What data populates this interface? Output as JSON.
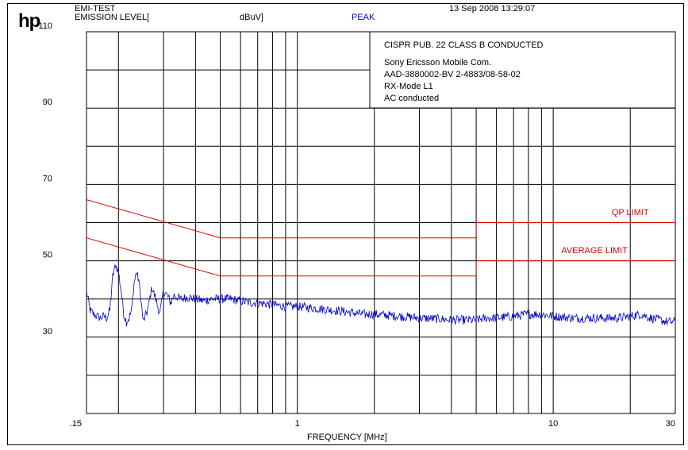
{
  "header": {
    "logo": "hp",
    "test_name": "EMI-TEST",
    "emission_level_label": "EMISSION LEVEL[",
    "unit_label": "dBuV]",
    "detector": "PEAK",
    "timestamp": "13 Sep 2008  13:29:07"
  },
  "info_box": {
    "standard": "CISPR PUB. 22 CLASS B CONDUCTED",
    "lines": [
      "Sony Ericsson Mobile Com.",
      "AAD-3880002-BV 2-4883/08-58-02",
      "RX-Mode L1",
      "AC conducted"
    ]
  },
  "colors": {
    "limit": "#e00000",
    "trace": "#0000cc",
    "grid": "#000000",
    "detector_text": "#0000cc"
  },
  "chart_data": {
    "type": "line",
    "xlabel": "FREQUENCY [MHz]",
    "ylabel": "",
    "x_scale": "log",
    "xlim": [
      0.15,
      30
    ],
    "ylim": [
      10,
      110
    ],
    "x_tick_labels": [
      {
        "value": 0.15,
        "label": ".15"
      },
      {
        "value": 1,
        "label": "1"
      },
      {
        "value": 10,
        "label": "10"
      },
      {
        "value": 30,
        "label": "30"
      }
    ],
    "y_tick_labels": [
      {
        "value": 110,
        "label": "110"
      },
      {
        "value": 90,
        "label": "90"
      },
      {
        "value": 70,
        "label": "70"
      },
      {
        "value": 50,
        "label": "50"
      },
      {
        "value": 30,
        "label": "30"
      }
    ],
    "grid": true,
    "series": [
      {
        "name": "QP LIMIT",
        "x": [
          0.15,
          0.5,
          0.5,
          5,
          5,
          30
        ],
        "y": [
          66,
          56,
          56,
          56,
          60,
          60
        ]
      },
      {
        "name": "AVERAGE LIMIT",
        "x": [
          0.15,
          0.5,
          0.5,
          5,
          5,
          30
        ],
        "y": [
          56,
          46,
          46,
          46,
          50,
          50
        ]
      },
      {
        "name": "PEAK",
        "x": [
          0.15,
          0.155,
          0.16,
          0.165,
          0.17,
          0.175,
          0.18,
          0.185,
          0.19,
          0.195,
          0.2,
          0.205,
          0.21,
          0.215,
          0.22,
          0.225,
          0.23,
          0.235,
          0.24,
          0.25,
          0.26,
          0.27,
          0.28,
          0.29,
          0.3,
          0.31,
          0.32,
          0.33,
          0.35,
          0.37,
          0.4,
          0.43,
          0.46,
          0.5,
          0.55,
          0.6,
          0.65,
          0.7,
          0.8,
          0.9,
          1.0,
          1.2,
          1.4,
          1.6,
          1.8,
          2.0,
          2.5,
          3.0,
          3.5,
          4.0,
          4.5,
          5.0,
          5.5,
          6.0,
          7.0,
          8.0,
          9.0,
          10.0,
          12.0,
          14.0,
          16.0,
          18.0,
          20.0,
          22.0,
          24.0,
          26.0,
          28.0,
          30.0
        ],
        "y": [
          42,
          37,
          36,
          35.5,
          35,
          35.5,
          35,
          37,
          46,
          49,
          47,
          42,
          36,
          34,
          35,
          37,
          44,
          47,
          45,
          34,
          37,
          43,
          40,
          36,
          42,
          41,
          39,
          41,
          40,
          40.5,
          40,
          39.5,
          40,
          40,
          40,
          39.5,
          39,
          39,
          38.5,
          38,
          38,
          37.5,
          37,
          36.5,
          36,
          36,
          35.5,
          35,
          34.8,
          34.5,
          34.5,
          34.5,
          35,
          35,
          35.5,
          36,
          36,
          35.5,
          35,
          35,
          35,
          35,
          35.5,
          36,
          35,
          34.5,
          34,
          34
        ]
      }
    ],
    "annotations": [
      {
        "text": "QP LIMIT",
        "x": 20,
        "y": 62
      },
      {
        "text": "AVERAGE LIMIT",
        "x": 14.5,
        "y": 52
      }
    ]
  }
}
